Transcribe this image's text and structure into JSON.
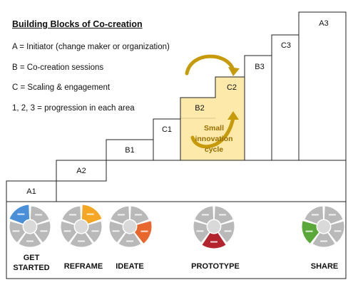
{
  "legend": {
    "title": "Building Blocks of Co-creation",
    "lines": [
      "A = Initiator (change maker or organization)",
      "B = Co-creation sessions",
      "C = Scaling & engagement",
      "1, 2, 3 = progression in each area"
    ]
  },
  "stairs": {
    "labels": [
      "A1",
      "A2",
      "B1",
      "C1",
      "B2",
      "C2",
      "B3",
      "C3",
      "A3"
    ],
    "highlight_color": "#fde9a9",
    "arrow_color": "#c79a0a"
  },
  "cycle": {
    "line1": "Small",
    "line2": "innovation",
    "line3": "cycle"
  },
  "phases": [
    {
      "label_line1": "GET",
      "label_line2": "STARTED",
      "active_color": "#4a90d9",
      "active_segment": "top-left"
    },
    {
      "label_line1": "REFRAME",
      "label_line2": "",
      "active_color": "#f5a623",
      "active_segment": "top-right"
    },
    {
      "label_line1": "IDEATE",
      "label_line2": "",
      "active_color": "#e8672c",
      "active_segment": "right"
    },
    {
      "label_line1": "PROTOTYPE",
      "label_line2": "",
      "active_color": "#b3242f",
      "active_segment": "bottom"
    },
    {
      "label_line1": "SHARE",
      "label_line2": "",
      "active_color": "#5aa83a",
      "active_segment": "left"
    }
  ]
}
